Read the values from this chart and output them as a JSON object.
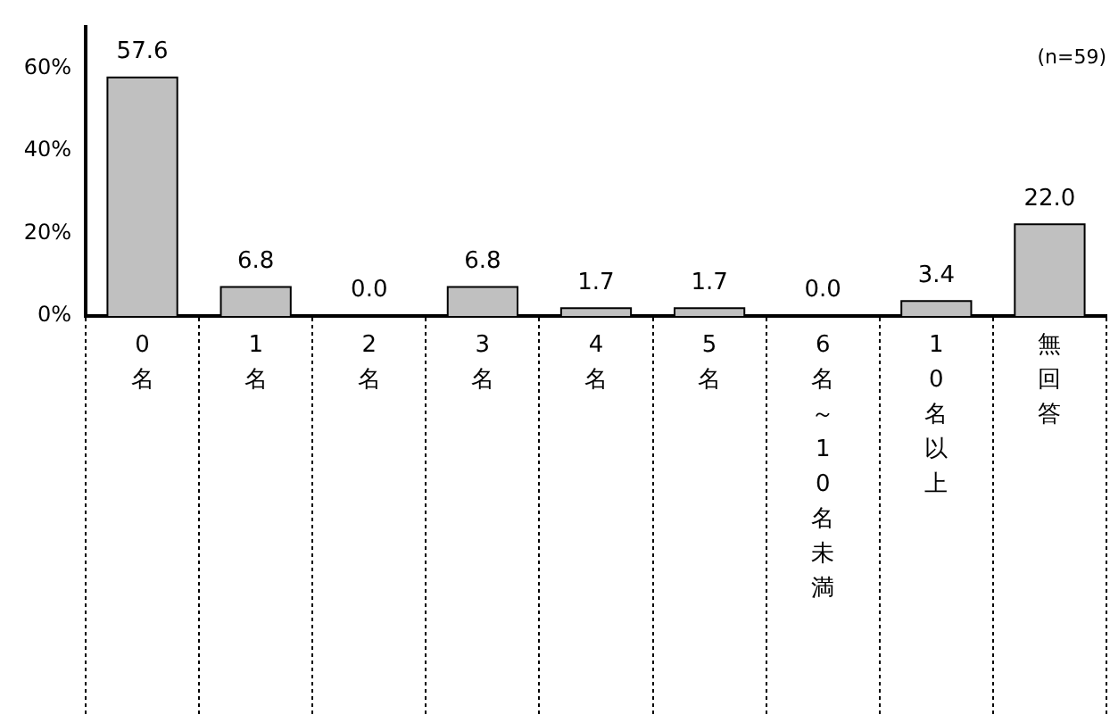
{
  "chart_data": {
    "type": "bar",
    "categories": [
      "0名",
      "1名",
      "2名",
      "3名",
      "4名",
      "5名",
      "6名～10名未満",
      "10名以上",
      "無回答"
    ],
    "values": [
      57.6,
      6.8,
      0.0,
      6.8,
      1.7,
      1.7,
      0.0,
      3.4,
      22.0
    ],
    "value_labels": [
      "57.6",
      "6.8",
      "0.0",
      "6.8",
      "1.7",
      "1.7",
      "0.0",
      "3.4",
      "22.0"
    ],
    "color": "#c0c0c0",
    "ylim": [
      0,
      70
    ],
    "yticks": [
      {
        "value": 0,
        "label": "0%"
      },
      {
        "value": 20,
        "label": "20%"
      },
      {
        "value": 40,
        "label": "40%"
      },
      {
        "value": 60,
        "label": "60%"
      }
    ],
    "grid": false,
    "legend": false,
    "annotations": [
      "(n=59)"
    ]
  }
}
